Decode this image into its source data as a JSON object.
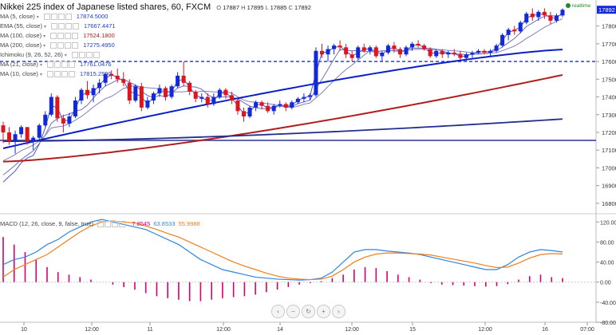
{
  "header": {
    "title": "Nikkei 225 index of Japanese listed shares, 60, FXCM",
    "open_label": "O",
    "open": "17887",
    "high_label": "H",
    "high": "17895",
    "low_label": "L",
    "low": "17885",
    "close_label": "C",
    "close": "17892",
    "realtime": "realtime"
  },
  "legend": [
    {
      "name": "MA (5, close)",
      "value": "17874.5000",
      "color": "#1f3fbf"
    },
    {
      "name": "EMA (55, close)",
      "value": "17667.4471",
      "color": "#1f3fbf"
    },
    {
      "name": "MA (100, close)",
      "value": "17524.1800",
      "color": "#b01e1e"
    },
    {
      "name": "MA (200, close)",
      "value": "17275.4950",
      "color": "#1f3fbf"
    },
    {
      "name": "Ichimoku (9, 26, 52, 26)",
      "value": "",
      "color": "#1f3fbf"
    },
    {
      "name": "MA (21, close)",
      "value": "17761.0476",
      "color": "#1f3fbf"
    },
    {
      "name": "MA (10, close)",
      "value": "17815.2500",
      "color": "#1f3fbf"
    }
  ],
  "macd_legend": {
    "name": "MACD (12, 26, close, 9, false, true)",
    "hist": "7.8545",
    "hist_color": "#d6006f",
    "macd": "63.8533",
    "macd_color": "#2e86de",
    "signal": "55.9988",
    "signal_color": "#f07f1a"
  },
  "navbar": [
    "‹",
    "−",
    "↻",
    "+",
    "›"
  ],
  "colors": {
    "up": "#1328d8",
    "down": "#e0141c",
    "ema55": "#0b1fc7",
    "ma100": "#b01e1e",
    "ma200": "#232f8c",
    "ma5": "#7070c0",
    "level": "#1a2fd6"
  },
  "chart_data": [
    {
      "type": "candlestick",
      "title": "Nikkei 225 index of Japanese listed shares, 60, FXCM",
      "ylim": [
        16750,
        17920
      ],
      "y_ticks": [
        16800,
        16900,
        17000,
        17100,
        17200,
        17300,
        17400,
        17500,
        17600,
        17700,
        17800,
        17892
      ],
      "x_tick_labels": [
        "10",
        "12:00",
        "11",
        "12:00",
        "14",
        "12:00",
        "15",
        "12:00",
        "16",
        "07:00"
      ],
      "last_price": 17892,
      "horizontal_levels": [
        17600,
        17155
      ],
      "candles": [
        [
          17240,
          17260,
          17140,
          17200
        ],
        [
          17200,
          17230,
          17130,
          17150
        ],
        [
          17150,
          17210,
          17080,
          17190
        ],
        [
          17190,
          17240,
          17170,
          17230
        ],
        [
          17230,
          17230,
          17130,
          17150
        ],
        [
          17150,
          17180,
          17100,
          17170
        ],
        [
          17170,
          17250,
          17160,
          17240
        ],
        [
          17240,
          17320,
          17230,
          17300
        ],
        [
          17300,
          17420,
          17290,
          17400
        ],
        [
          17400,
          17410,
          17260,
          17280
        ],
        [
          17280,
          17300,
          17200,
          17250
        ],
        [
          17250,
          17310,
          17230,
          17290
        ],
        [
          17290,
          17400,
          17280,
          17380
        ],
        [
          17380,
          17450,
          17360,
          17440
        ],
        [
          17440,
          17490,
          17390,
          17410
        ],
        [
          17410,
          17470,
          17370,
          17450
        ],
        [
          17450,
          17500,
          17420,
          17480
        ],
        [
          17480,
          17540,
          17460,
          17530
        ],
        [
          17530,
          17550,
          17500,
          17520
        ],
        [
          17520,
          17560,
          17480,
          17500
        ],
        [
          17500,
          17540,
          17460,
          17480
        ],
        [
          17480,
          17500,
          17360,
          17380
        ],
        [
          17380,
          17470,
          17370,
          17460
        ],
        [
          17460,
          17480,
          17320,
          17340
        ],
        [
          17340,
          17400,
          17330,
          17380
        ],
        [
          17380,
          17430,
          17360,
          17420
        ],
        [
          17420,
          17470,
          17400,
          17450
        ],
        [
          17450,
          17460,
          17380,
          17400
        ],
        [
          17400,
          17470,
          17390,
          17460
        ],
        [
          17460,
          17540,
          17450,
          17520
        ],
        [
          17520,
          17600,
          17460,
          17480
        ],
        [
          17480,
          17490,
          17410,
          17430
        ],
        [
          17430,
          17440,
          17370,
          17390
        ],
        [
          17390,
          17420,
          17370,
          17400
        ],
        [
          17400,
          17420,
          17340,
          17360
        ],
        [
          17360,
          17420,
          17350,
          17400
        ],
        [
          17400,
          17450,
          17390,
          17440
        ],
        [
          17440,
          17450,
          17390,
          17410
        ],
        [
          17410,
          17430,
          17360,
          17380
        ],
        [
          17380,
          17390,
          17300,
          17320
        ],
        [
          17320,
          17340,
          17260,
          17290
        ],
        [
          17290,
          17350,
          17280,
          17340
        ],
        [
          17340,
          17380,
          17320,
          17370
        ],
        [
          17370,
          17380,
          17330,
          17350
        ],
        [
          17350,
          17370,
          17310,
          17320
        ],
        [
          17320,
          17360,
          17300,
          17350
        ],
        [
          17350,
          17380,
          17340,
          17360
        ],
        [
          17360,
          17370,
          17320,
          17340
        ],
        [
          17340,
          17380,
          17330,
          17370
        ],
        [
          17370,
          17400,
          17360,
          17390
        ],
        [
          17390,
          17420,
          17370,
          17400
        ],
        [
          17400,
          17420,
          17380,
          17410
        ],
        [
          17410,
          17680,
          17400,
          17660
        ],
        [
          17660,
          17700,
          17620,
          17640
        ],
        [
          17640,
          17690,
          17600,
          17670
        ],
        [
          17670,
          17700,
          17640,
          17690
        ],
        [
          17690,
          17720,
          17660,
          17680
        ],
        [
          17680,
          17700,
          17620,
          17640
        ],
        [
          17640,
          17660,
          17600,
          17620
        ],
        [
          17620,
          17690,
          17610,
          17680
        ],
        [
          17680,
          17700,
          17650,
          17660
        ],
        [
          17660,
          17690,
          17640,
          17680
        ],
        [
          17680,
          17690,
          17620,
          17630
        ],
        [
          17630,
          17660,
          17600,
          17650
        ],
        [
          17650,
          17700,
          17640,
          17690
        ],
        [
          17690,
          17710,
          17650,
          17670
        ],
        [
          17670,
          17680,
          17620,
          17640
        ],
        [
          17640,
          17690,
          17630,
          17680
        ],
        [
          17680,
          17710,
          17660,
          17700
        ],
        [
          17700,
          17720,
          17680,
          17690
        ],
        [
          17690,
          17700,
          17660,
          17670
        ],
        [
          17670,
          17680,
          17620,
          17630
        ],
        [
          17630,
          17670,
          17620,
          17660
        ],
        [
          17660,
          17670,
          17620,
          17640
        ],
        [
          17640,
          17660,
          17620,
          17650
        ],
        [
          17650,
          17670,
          17630,
          17640
        ],
        [
          17640,
          17660,
          17610,
          17620
        ],
        [
          17620,
          17650,
          17600,
          17640
        ],
        [
          17640,
          17660,
          17620,
          17650
        ],
        [
          17650,
          17670,
          17640,
          17660
        ],
        [
          17660,
          17670,
          17640,
          17650
        ],
        [
          17650,
          17670,
          17630,
          17660
        ],
        [
          17660,
          17700,
          17650,
          17690
        ],
        [
          17690,
          17760,
          17680,
          17750
        ],
        [
          17750,
          17790,
          17720,
          17780
        ],
        [
          17780,
          17800,
          17750,
          17770
        ],
        [
          17770,
          17830,
          17760,
          17820
        ],
        [
          17820,
          17880,
          17810,
          17870
        ],
        [
          17870,
          17900,
          17830,
          17850
        ],
        [
          17850,
          17890,
          17830,
          17880
        ],
        [
          17880,
          17900,
          17840,
          17860
        ],
        [
          17860,
          17880,
          17810,
          17830
        ],
        [
          17830,
          17870,
          17820,
          17860
        ],
        [
          17860,
          17900,
          17850,
          17892
        ]
      ],
      "overlays": [
        {
          "name": "MA (5, close)",
          "y_start": 16920,
          "y_end": 17874.5
        },
        {
          "name": "MA (10, close)",
          "y_start": 16960,
          "y_end": 17815.25
        },
        {
          "name": "MA (21, close)",
          "y_start": 17040,
          "y_end": 17761.05
        },
        {
          "name": "EMA (55, close)",
          "y_start": 17110,
          "y_end": 17667.45
        },
        {
          "name": "MA (100, close)",
          "y_start": 17035,
          "y_end": 17524.18
        },
        {
          "name": "MA (200, close)",
          "y_start": 17150,
          "y_end": 17275.5
        }
      ]
    },
    {
      "type": "line",
      "title": "MACD (12, 26, close, 9, false, true)",
      "ylim": [
        -80,
        130
      ],
      "y_ticks": [
        -80,
        -40,
        0,
        40,
        80,
        120
      ],
      "series": [
        {
          "name": "MACD",
          "color": "#2e86de",
          "values": [
            35,
            45,
            50,
            60,
            75,
            85,
            100,
            110,
            120,
            125,
            120,
            115,
            110,
            105,
            95,
            85,
            75,
            60,
            45,
            35,
            25,
            20,
            15,
            10,
            8,
            6,
            5,
            4,
            5,
            8,
            20,
            40,
            60,
            65,
            65,
            62,
            60,
            58,
            55,
            50,
            45,
            40,
            35,
            30,
            25,
            25,
            35,
            50,
            60,
            65,
            63,
            60
          ]
        },
        {
          "name": "Signal",
          "color": "#f07f1a",
          "values": [
            10,
            25,
            35,
            45,
            55,
            70,
            85,
            100,
            112,
            120,
            122,
            120,
            118,
            112,
            105,
            97,
            90,
            80,
            70,
            60,
            50,
            40,
            32,
            25,
            18,
            12,
            8,
            6,
            5,
            6,
            12,
            25,
            40,
            50,
            56,
            58,
            58,
            57,
            56,
            54,
            50,
            46,
            42,
            38,
            33,
            29,
            30,
            38,
            48,
            55,
            57,
            56
          ]
        },
        {
          "name": "Histogram",
          "color": "#d6006f",
          "values": [
            90,
            75,
            60,
            45,
            30,
            20,
            15,
            10,
            5,
            0,
            -5,
            -10,
            -15,
            -22,
            -28,
            -32,
            -35,
            -38,
            -38,
            -35,
            -32,
            -30,
            -28,
            -25,
            -20,
            -15,
            -10,
            -5,
            -2,
            2,
            8,
            15,
            25,
            30,
            28,
            22,
            15,
            10,
            5,
            -2,
            -5,
            -6,
            -7,
            -8,
            -9,
            -8,
            -4,
            5,
            12,
            15,
            10,
            8
          ]
        }
      ]
    }
  ]
}
